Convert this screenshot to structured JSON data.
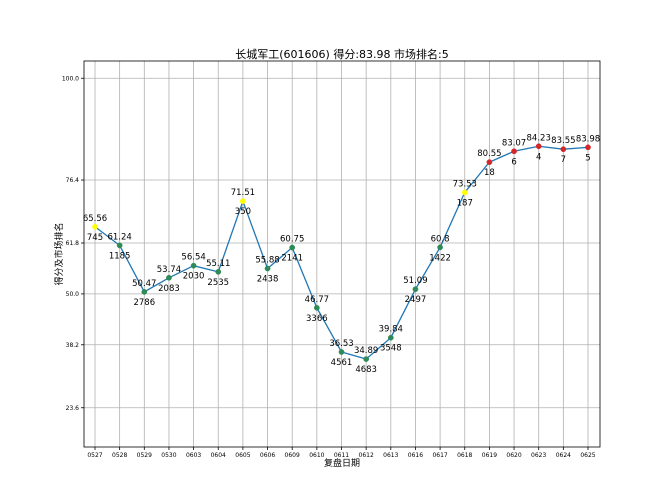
{
  "chart_data": {
    "type": "line",
    "title": "长城军工(601606) 得分:83.98   市场排名:5",
    "xlabel": "复盘日期",
    "ylabel": "得分及市场排名",
    "categories": [
      "0527",
      "0528",
      "0529",
      "0530",
      "0603",
      "0604",
      "0605",
      "0606",
      "0609",
      "0610",
      "0611",
      "0612",
      "0613",
      "0616",
      "0617",
      "0618",
      "0619",
      "0620",
      "0623",
      "0624",
      "0625"
    ],
    "yticks": [
      "23.6",
      "38.2",
      "50.0",
      "61.8",
      "76.4",
      "100.0"
    ],
    "ylim": [
      14.5,
      104.0
    ],
    "grid": true,
    "line_color": "#1f77b4",
    "series": [
      {
        "values": [
          65.56,
          61.24,
          50.47,
          53.74,
          56.54,
          55.11,
          71.51,
          55.88,
          60.75,
          46.77,
          36.53,
          34.89,
          39.84,
          51.09,
          60.8,
          73.53,
          80.55,
          83.07,
          84.23,
          83.55,
          83.98
        ],
        "score_labels": [
          "65.56",
          "61.24",
          "50.47",
          "53.74",
          "56.54",
          "55.11",
          "71.51",
          "55.88",
          "60.75",
          "46.77",
          "36.53",
          "34.89",
          "39.84",
          "51.09",
          "60.8",
          "73.53",
          "80.55",
          "83.07",
          "84.23",
          "83.55",
          "83.98"
        ],
        "rank_labels": [
          "745",
          "1185",
          "2786",
          "2083",
          "2030",
          "2535",
          "350",
          "2438",
          "2141",
          "3366",
          "4561",
          "4683",
          "3548",
          "2497",
          "1422",
          "187",
          "18",
          "6",
          "4",
          "7",
          "5"
        ],
        "marker_colors": [
          "#ffff00",
          "#2e8b57",
          "#2e8b57",
          "#2e8b57",
          "#2e8b57",
          "#2e8b57",
          "#ffff00",
          "#2e8b57",
          "#2e8b57",
          "#2e8b57",
          "#2e8b57",
          "#2e8b57",
          "#2e8b57",
          "#2e8b57",
          "#2e8b57",
          "#ffff00",
          "#d62728",
          "#d62728",
          "#d62728",
          "#d62728",
          "#d62728"
        ]
      }
    ]
  }
}
